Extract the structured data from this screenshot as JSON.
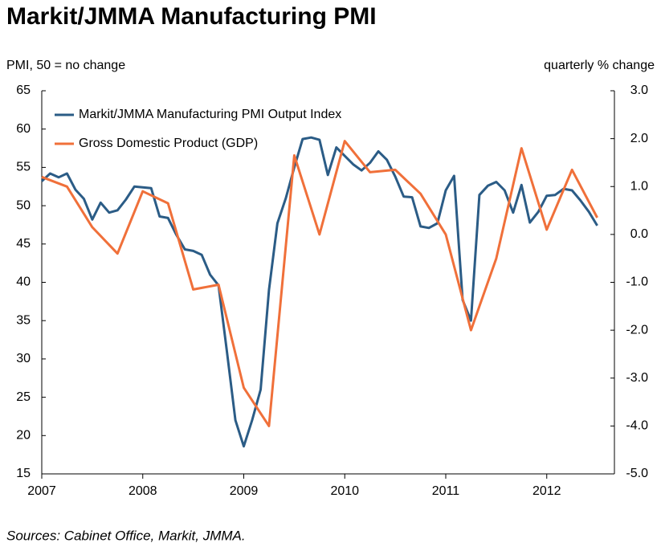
{
  "chart_data": {
    "type": "line",
    "title": "Markit/JMMA Manufacturing PMI",
    "y_label": "PMI, 50 = no change",
    "y2_label": "quarterly % change",
    "source": "Sources: Cabinet Office, Markit, JMMA.",
    "xlim": [
      2007,
      2012.67
    ],
    "xticks": [
      2007,
      2008,
      2009,
      2010,
      2011,
      2012
    ],
    "ylim": [
      15,
      65
    ],
    "yticks": [
      15,
      20,
      25,
      30,
      35,
      40,
      45,
      50,
      55,
      60,
      65
    ],
    "y2lim": [
      -5,
      3
    ],
    "y2ticks": [
      {
        "value": -5,
        "label": "-5.0"
      },
      {
        "value": -4,
        "label": "-4.0"
      },
      {
        "value": -3,
        "label": "-3.0"
      },
      {
        "value": -2,
        "label": "-2.0"
      },
      {
        "value": -1,
        "label": "-1.0"
      },
      {
        "value": 0,
        "label": "0.0"
      },
      {
        "value": 1,
        "label": "1.0"
      },
      {
        "value": 2,
        "label": "2.0"
      },
      {
        "value": 3,
        "label": "3.0"
      }
    ],
    "grid": false,
    "legend": "upper left",
    "series": [
      {
        "name": "Markit/JMMA Manufacturing PMI Output Index",
        "color": "#2b5c86",
        "x": [
          2007,
          2007.083,
          2007.167,
          2007.25,
          2007.333,
          2007.417,
          2007.5,
          2007.583,
          2007.667,
          2007.75,
          2007.833,
          2007.917,
          2008,
          2008.083,
          2008.167,
          2008.25,
          2008.333,
          2008.417,
          2008.5,
          2008.583,
          2008.667,
          2008.75,
          2008.833,
          2008.917,
          2009,
          2009.083,
          2009.167,
          2009.25,
          2009.333,
          2009.417,
          2009.5,
          2009.583,
          2009.667,
          2009.75,
          2009.833,
          2009.917,
          2010,
          2010.083,
          2010.167,
          2010.25,
          2010.333,
          2010.417,
          2010.5,
          2010.583,
          2010.667,
          2010.75,
          2010.833,
          2010.917,
          2011,
          2011.083,
          2011.167,
          2011.25,
          2011.333,
          2011.417,
          2011.5,
          2011.583,
          2011.667,
          2011.75,
          2011.833,
          2011.917,
          2012,
          2012.083,
          2012.167,
          2012.25,
          2012.333,
          2012.417,
          2012.5
        ],
        "values": [
          53.2,
          54.2,
          53.7,
          54.2,
          52.1,
          50.9,
          48.2,
          50.4,
          49.1,
          49.4,
          50.8,
          52.5,
          52.4,
          52.3,
          48.6,
          48.4,
          46.2,
          44.3,
          44.1,
          43.6,
          41.0,
          39.6,
          31.0,
          22.0,
          18.6,
          22.0,
          26.0,
          39.0,
          47.7,
          51.0,
          55.0,
          58.7,
          58.9,
          58.6,
          54.0,
          57.6,
          56.5,
          55.4,
          54.6,
          55.6,
          57.1,
          56.0,
          53.8,
          51.2,
          51.1,
          47.3,
          47.1,
          47.7,
          52.0,
          53.9,
          37.7,
          35.0,
          51.4,
          52.6,
          53.1,
          52.0,
          49.1,
          52.7,
          47.8,
          49.2,
          51.3,
          51.4,
          52.2,
          52.0,
          50.7,
          49.2,
          47.4
        ]
      },
      {
        "name": "Gross Domestic Product (GDP)",
        "color": "#f0703a",
        "axis": "y2",
        "x": [
          2007,
          2007.25,
          2007.5,
          2007.75,
          2008,
          2008.25,
          2008.5,
          2008.75,
          2009,
          2009.25,
          2009.5,
          2009.75,
          2010,
          2010.25,
          2010.5,
          2010.75,
          2011,
          2011.25,
          2011.5,
          2011.75,
          2012,
          2012.25,
          2012.5
        ],
        "values": [
          1.2,
          1.0,
          0.15,
          -0.4,
          0.9,
          0.65,
          -1.15,
          -1.05,
          -3.2,
          -4.0,
          1.65,
          0.0,
          1.95,
          1.3,
          1.35,
          0.85,
          0.0,
          -2.0,
          -0.5,
          1.8,
          0.1,
          1.35,
          0.35
        ]
      }
    ]
  }
}
